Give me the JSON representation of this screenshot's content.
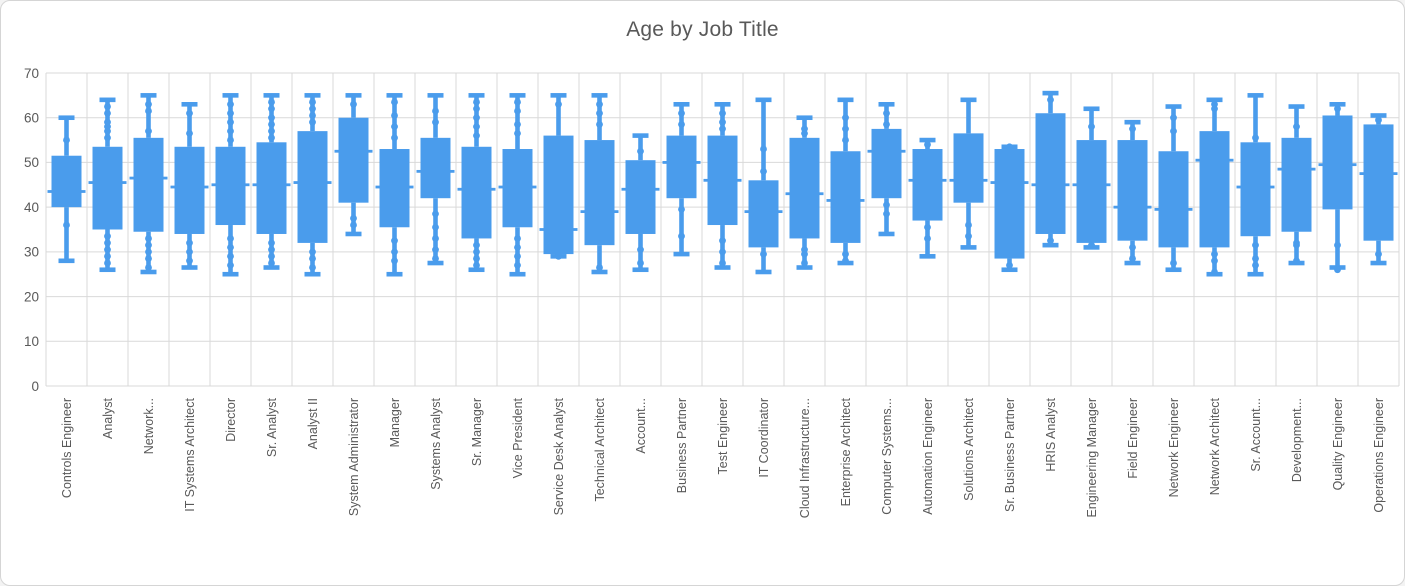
{
  "window": {
    "background": "#ffffff",
    "frame_border_color": "#d5d5d5"
  },
  "chart_data": {
    "type": "boxplot",
    "title": "Age by Job Title",
    "xlabel": "",
    "ylabel": "",
    "legend": "none",
    "gridlines": true,
    "x_label_rotation": -90,
    "colors": {
      "box_fill": "#4a9cec",
      "gridline": "#d9d9d9",
      "axis_text": "#595959",
      "title_text": "#595959"
    },
    "y_axis": {
      "min": 0,
      "max": 70,
      "tick_interval": 10,
      "ticks": [
        0,
        10,
        20,
        30,
        40,
        50,
        60,
        70
      ]
    },
    "boxes": [
      {
        "label": "Controls Engineer",
        "min": 28,
        "q1": 40,
        "median": 43.5,
        "q3": 51.5,
        "max": 60,
        "upper_points": [
          55
        ],
        "lower_points": [
          36
        ]
      },
      {
        "label": "Analyst",
        "min": 26,
        "q1": 35,
        "median": 45.5,
        "q3": 53.5,
        "max": 64,
        "upper_points": [
          62.5,
          61,
          59,
          58,
          57,
          55.5
        ],
        "lower_points": [
          33.5,
          32,
          30.5,
          29,
          27.5
        ]
      },
      {
        "label": "Network...",
        "min": 25.5,
        "q1": 34.5,
        "median": 46.5,
        "q3": 55.5,
        "max": 65,
        "upper_points": [
          63,
          61.5,
          57
        ],
        "lower_points": [
          33,
          31.5,
          30,
          28.5,
          26.5
        ]
      },
      {
        "label": "IT Systems Architect",
        "min": 26.5,
        "q1": 34,
        "median": 44.5,
        "q3": 53.5,
        "max": 63,
        "upper_points": [
          61,
          56.5
        ],
        "lower_points": [
          32,
          30,
          28
        ]
      },
      {
        "label": "Director",
        "min": 25,
        "q1": 36,
        "median": 45,
        "q3": 53.5,
        "max": 65,
        "upper_points": [
          63,
          61,
          59,
          57,
          55
        ],
        "lower_points": [
          33,
          31,
          29,
          27
        ]
      },
      {
        "label": "Sr. Analyst",
        "min": 26.5,
        "q1": 34,
        "median": 45,
        "q3": 54.5,
        "max": 65,
        "upper_points": [
          63.5,
          62,
          60,
          58.5,
          57,
          55.5
        ],
        "lower_points": [
          32,
          30.5,
          29,
          27.5
        ]
      },
      {
        "label": "Analyst II",
        "min": 25,
        "q1": 32,
        "median": 45.5,
        "q3": 57,
        "max": 65,
        "upper_points": [
          63.5,
          62,
          60.5,
          59
        ],
        "lower_points": [
          30,
          28.5,
          26.5
        ]
      },
      {
        "label": "System Administrator",
        "min": 34,
        "q1": 41,
        "median": 52.5,
        "q3": 60,
        "max": 65,
        "upper_points": [
          63
        ],
        "lower_points": [
          37.5,
          36
        ]
      },
      {
        "label": "Manager",
        "min": 25,
        "q1": 35.5,
        "median": 44.5,
        "q3": 53,
        "max": 65,
        "upper_points": [
          63.5,
          60.5,
          58,
          55.5
        ],
        "lower_points": [
          32.5,
          30,
          28
        ]
      },
      {
        "label": "Systems Analyst",
        "min": 27.5,
        "q1": 42,
        "median": 48,
        "q3": 55.5,
        "max": 65,
        "upper_points": [
          61.5,
          59
        ],
        "lower_points": [
          38.5,
          35.5,
          33,
          30.5,
          28.5
        ]
      },
      {
        "label": "Sr. Manager",
        "min": 26,
        "q1": 33,
        "median": 44,
        "q3": 53.5,
        "max": 65,
        "upper_points": [
          63.5,
          62,
          60,
          58,
          56
        ],
        "lower_points": [
          31.5,
          30,
          28.5,
          27
        ]
      },
      {
        "label": "Vice President",
        "min": 25,
        "q1": 35.5,
        "median": 44.5,
        "q3": 53,
        "max": 65,
        "upper_points": [
          63.5,
          61.5,
          58.5,
          56.5
        ],
        "lower_points": [
          33,
          31,
          29,
          27
        ]
      },
      {
        "label": "Service Desk Analyst",
        "min": 29,
        "q1": 29.5,
        "median": 35,
        "q3": 56,
        "max": 65,
        "upper_points": [
          63
        ],
        "lower_points": [
          29.5,
          29
        ]
      },
      {
        "label": "Technical Architect",
        "min": 25.5,
        "q1": 31.5,
        "median": 39,
        "q3": 55,
        "max": 65,
        "upper_points": [
          63,
          61,
          58.5
        ],
        "lower_points": [
          26.5
        ]
      },
      {
        "label": "Account...",
        "min": 26,
        "q1": 34,
        "median": 44,
        "q3": 50.5,
        "max": 56,
        "upper_points": [
          52.5
        ],
        "lower_points": [
          30.5,
          27.5
        ]
      },
      {
        "label": "Business Partner",
        "min": 29.5,
        "q1": 42,
        "median": 50,
        "q3": 56,
        "max": 63,
        "upper_points": [
          61,
          58.5
        ],
        "lower_points": [
          39.5,
          33.5
        ]
      },
      {
        "label": "Test Engineer",
        "min": 26.5,
        "q1": 36,
        "median": 46,
        "q3": 56,
        "max": 63,
        "upper_points": [
          61,
          59,
          57.5
        ],
        "lower_points": [
          32.5,
          30,
          27.5
        ]
      },
      {
        "label": "IT Coordinator",
        "min": 25.5,
        "q1": 31,
        "median": 39,
        "q3": 46,
        "max": 64,
        "upper_points": [
          53,
          48
        ],
        "lower_points": [
          29.5
        ]
      },
      {
        "label": "Cloud Infrastructure...",
        "min": 26.5,
        "q1": 33,
        "median": 43,
        "q3": 55.5,
        "max": 60,
        "upper_points": [
          57.5,
          56.5
        ],
        "lower_points": [
          30.5,
          29.5,
          27.5
        ]
      },
      {
        "label": "Enterprise Architect",
        "min": 27.5,
        "q1": 32,
        "median": 41.5,
        "q3": 52.5,
        "max": 64,
        "upper_points": [
          60,
          57.5,
          55
        ],
        "lower_points": [
          29.5,
          28
        ]
      },
      {
        "label": "Computer Systems...",
        "min": 34,
        "q1": 42,
        "median": 52.5,
        "q3": 57.5,
        "max": 63,
        "upper_points": [
          61,
          58.5
        ],
        "lower_points": [
          40.5,
          38.5
        ]
      },
      {
        "label": "Automation Engineer",
        "min": 29,
        "q1": 37,
        "median": 46,
        "q3": 53,
        "max": 55,
        "upper_points": [
          54
        ],
        "lower_points": [
          35.5,
          33
        ]
      },
      {
        "label": "Solutions Architect",
        "min": 31,
        "q1": 41,
        "median": 46,
        "q3": 56.5,
        "max": 64,
        "upper_points": [],
        "lower_points": [
          36,
          33.5
        ]
      },
      {
        "label": "Sr. Business Partner",
        "min": 26,
        "q1": 28.5,
        "median": 45.5,
        "q3": 53,
        "max": 53.5,
        "upper_points": [
          53.5
        ],
        "lower_points": [
          27
        ]
      },
      {
        "label": "HRIS Analyst",
        "min": 31.5,
        "q1": 34,
        "median": 45,
        "q3": 61,
        "max": 65.5,
        "upper_points": [
          64
        ],
        "lower_points": [
          32.5
        ]
      },
      {
        "label": "Engineering Manager",
        "min": 31,
        "q1": 32,
        "median": 45,
        "q3": 55,
        "max": 62,
        "upper_points": [
          58
        ],
        "lower_points": [
          31.5
        ]
      },
      {
        "label": "Field Engineer",
        "min": 27.5,
        "q1": 32.5,
        "median": 40,
        "q3": 55,
        "max": 59,
        "upper_points": [
          57.5
        ],
        "lower_points": [
          31,
          28.5
        ]
      },
      {
        "label": "Network Engineer",
        "min": 26,
        "q1": 31,
        "median": 39.5,
        "q3": 52.5,
        "max": 62.5,
        "upper_points": [
          60,
          57
        ],
        "lower_points": [
          27.5
        ]
      },
      {
        "label": "Network Architect",
        "min": 25,
        "q1": 31,
        "median": 50.5,
        "q3": 57,
        "max": 64,
        "upper_points": [
          63,
          62
        ],
        "lower_points": [
          29.5,
          28,
          25.5
        ]
      },
      {
        "label": "Sr. Account...",
        "min": 25,
        "q1": 33.5,
        "median": 44.5,
        "q3": 54.5,
        "max": 65,
        "upper_points": [
          55.5
        ],
        "lower_points": [
          31.5,
          28.5,
          27
        ]
      },
      {
        "label": "Development...",
        "min": 27.5,
        "q1": 34.5,
        "median": 48.5,
        "q3": 55.5,
        "max": 62.5,
        "upper_points": [
          58
        ],
        "lower_points": [
          32,
          31.5,
          28
        ]
      },
      {
        "label": "Quality Engineer",
        "min": 26.5,
        "q1": 39.5,
        "median": 49.5,
        "q3": 60.5,
        "max": 63,
        "upper_points": [
          62
        ],
        "lower_points": [
          31.5,
          26
        ]
      },
      {
        "label": "Operations Engineer",
        "min": 27.5,
        "q1": 32.5,
        "median": 47.5,
        "q3": 58.5,
        "max": 60.5,
        "upper_points": [
          59.5
        ],
        "lower_points": [
          29.5
        ]
      }
    ]
  }
}
